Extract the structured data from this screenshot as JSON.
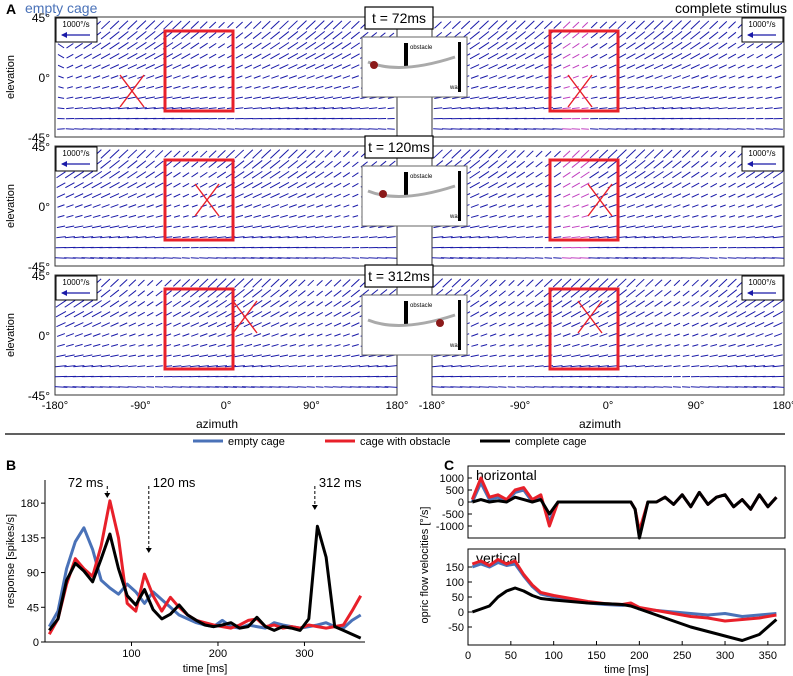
{
  "colors": {
    "empty": "#4a72b8",
    "obstacle": "#e8202a",
    "complete": "#000000",
    "flow": "#1a1aa8",
    "flow_highlight": "#c040c0",
    "box": "#e8202a"
  },
  "panelA": {
    "label": "A",
    "left_title": "empty cage",
    "right_title": "complete stimulus",
    "speed_label": "1000°/s",
    "elevation_label": "elevation",
    "azimuth_label": "azimuth",
    "elev_ticks": [
      "45°",
      "0°",
      "-45°"
    ],
    "azim_ticks": [
      "-180°",
      "-90°",
      "0°",
      "90°",
      "180°"
    ],
    "times": [
      "t = 72ms",
      "t = 120ms",
      "t = 312ms"
    ],
    "inset_obstacle": "obstacle",
    "inset_wall": "wall"
  },
  "legend": {
    "empty": "empty cage",
    "obstacle": "cage with obstacle",
    "complete": "complete cage"
  },
  "chart_data": [
    {
      "panel": "B",
      "type": "line",
      "title": "",
      "xlabel": "time [ms]",
      "ylabel": "response [spikes/s]",
      "xlim": [
        0,
        370
      ],
      "ylim": [
        0,
        210
      ],
      "xticks": [
        100,
        200,
        300
      ],
      "yticks": [
        0,
        45,
        90,
        135,
        180
      ],
      "annotations": [
        {
          "text": "72 ms",
          "x": 72
        },
        {
          "text": "120 ms",
          "x": 120
        },
        {
          "text": "312 ms",
          "x": 312
        }
      ],
      "series": [
        {
          "name": "empty cage",
          "x": [
            5,
            15,
            25,
            35,
            45,
            55,
            65,
            75,
            85,
            95,
            105,
            115,
            125,
            135,
            145,
            155,
            165,
            175,
            185,
            195,
            205,
            215,
            225,
            235,
            245,
            255,
            265,
            275,
            285,
            295,
            305,
            315,
            325,
            335,
            345,
            355,
            365
          ],
          "values": [
            20,
            40,
            95,
            130,
            148,
            120,
            80,
            70,
            62,
            75,
            65,
            50,
            65,
            55,
            45,
            35,
            30,
            25,
            22,
            20,
            28,
            20,
            18,
            22,
            20,
            18,
            25,
            22,
            20,
            18,
            20,
            22,
            25,
            20,
            18,
            28,
            35
          ]
        },
        {
          "name": "cage with obstacle",
          "x": [
            5,
            15,
            25,
            35,
            45,
            55,
            65,
            75,
            85,
            95,
            105,
            115,
            125,
            135,
            145,
            155,
            165,
            175,
            185,
            195,
            205,
            215,
            225,
            235,
            245,
            255,
            265,
            275,
            285,
            295,
            305,
            315,
            325,
            335,
            345,
            355,
            365
          ],
          "values": [
            10,
            30,
            75,
            108,
            95,
            85,
            125,
            183,
            135,
            50,
            40,
            88,
            60,
            40,
            58,
            45,
            35,
            28,
            25,
            22,
            20,
            18,
            22,
            28,
            30,
            20,
            22,
            18,
            20,
            18,
            22,
            20,
            18,
            20,
            22,
            40,
            60
          ]
        },
        {
          "name": "complete cage",
          "x": [
            5,
            15,
            25,
            35,
            45,
            55,
            65,
            75,
            85,
            95,
            105,
            115,
            125,
            135,
            145,
            155,
            165,
            175,
            185,
            195,
            205,
            215,
            225,
            235,
            245,
            255,
            265,
            275,
            285,
            295,
            305,
            315,
            325,
            335,
            345,
            355,
            365
          ],
          "values": [
            15,
            30,
            80,
            102,
            92,
            78,
            108,
            140,
            95,
            60,
            48,
            68,
            42,
            30,
            36,
            48,
            35,
            28,
            22,
            20,
            22,
            25,
            18,
            20,
            32,
            20,
            15,
            20,
            18,
            15,
            30,
            150,
            110,
            20,
            15,
            10,
            5
          ]
        }
      ]
    },
    {
      "panel": "C",
      "type": "line",
      "title": "horizontal",
      "xlabel": "",
      "ylabel": "opric flow velocities [°/s]",
      "xlim": [
        0,
        370
      ],
      "ylim": [
        -1500,
        1500
      ],
      "yticks": [
        1000,
        500,
        0,
        -500,
        -1000
      ],
      "series": [
        {
          "name": "empty cage",
          "x": [
            5,
            15,
            25,
            35,
            45,
            55,
            65,
            75,
            85,
            95,
            105,
            120,
            150,
            180,
            190,
            195,
            200,
            210,
            220,
            230,
            240,
            250,
            260,
            270,
            280,
            290,
            300,
            310,
            320,
            330,
            340,
            350,
            360
          ],
          "values": [
            0,
            800,
            100,
            200,
            0,
            400,
            500,
            0,
            200,
            -800,
            0,
            0,
            0,
            0,
            0,
            -300,
            -1400,
            0,
            0,
            200,
            -100,
            300,
            -200,
            400,
            -100,
            200,
            300,
            -200,
            100,
            -300,
            300,
            -200,
            200
          ]
        },
        {
          "name": "cage with obstacle",
          "x": [
            5,
            15,
            25,
            35,
            45,
            55,
            65,
            75,
            85,
            95,
            105,
            120,
            150,
            180,
            190,
            195,
            200,
            210,
            220,
            230,
            240,
            250,
            260,
            270,
            280,
            290,
            300,
            310,
            320,
            330,
            340,
            350,
            360
          ],
          "values": [
            100,
            1000,
            200,
            300,
            100,
            500,
            600,
            100,
            300,
            -1000,
            0,
            0,
            0,
            0,
            0,
            -300,
            -1200,
            0,
            0,
            200,
            -100,
            300,
            -200,
            400,
            -100,
            200,
            300,
            -200,
            100,
            -300,
            300,
            -200,
            200
          ]
        },
        {
          "name": "complete cage",
          "x": [
            5,
            15,
            25,
            35,
            45,
            55,
            65,
            75,
            85,
            95,
            105,
            120,
            150,
            180,
            190,
            195,
            200,
            210,
            220,
            230,
            240,
            250,
            260,
            270,
            280,
            290,
            300,
            310,
            320,
            330,
            340,
            350,
            360
          ],
          "values": [
            0,
            100,
            0,
            50,
            0,
            200,
            100,
            0,
            100,
            -500,
            0,
            0,
            0,
            0,
            0,
            -300,
            -1500,
            0,
            0,
            200,
            -100,
            300,
            -200,
            400,
            -100,
            200,
            300,
            -200,
            100,
            -300,
            300,
            -200,
            200
          ]
        }
      ]
    },
    {
      "panel": "C",
      "type": "line",
      "title": "vertical",
      "xlabel": "time [ms]",
      "ylabel": "opric flow velocities [°/s]",
      "xlim": [
        0,
        370
      ],
      "ylim": [
        -110,
        210
      ],
      "xticks": [
        0,
        50,
        100,
        150,
        200,
        250,
        300,
        350
      ],
      "yticks": [
        150,
        100,
        50,
        0,
        -50
      ],
      "series": [
        {
          "name": "empty cage",
          "x": [
            5,
            15,
            25,
            35,
            45,
            55,
            65,
            75,
            85,
            100,
            120,
            140,
            160,
            180,
            190,
            200,
            220,
            240,
            260,
            280,
            300,
            320,
            340,
            360
          ],
          "values": [
            150,
            160,
            150,
            165,
            155,
            160,
            120,
            85,
            60,
            50,
            40,
            30,
            25,
            22,
            25,
            10,
            5,
            0,
            -5,
            -10,
            -5,
            -15,
            -10,
            -5
          ]
        },
        {
          "name": "cage with obstacle",
          "x": [
            5,
            15,
            25,
            35,
            45,
            55,
            65,
            75,
            85,
            100,
            120,
            140,
            160,
            180,
            190,
            200,
            220,
            240,
            260,
            280,
            300,
            320,
            340,
            360
          ],
          "values": [
            160,
            170,
            155,
            175,
            160,
            170,
            125,
            90,
            65,
            55,
            45,
            35,
            28,
            25,
            30,
            15,
            5,
            -5,
            -15,
            -20,
            -30,
            -25,
            -20,
            -10
          ]
        },
        {
          "name": "complete cage",
          "x": [
            5,
            15,
            25,
            35,
            45,
            55,
            65,
            75,
            85,
            100,
            120,
            140,
            160,
            180,
            190,
            200,
            220,
            240,
            260,
            280,
            300,
            320,
            340,
            360
          ],
          "values": [
            0,
            10,
            20,
            50,
            70,
            80,
            70,
            55,
            45,
            40,
            35,
            30,
            28,
            25,
            20,
            10,
            -10,
            -30,
            -50,
            -65,
            -80,
            -95,
            -75,
            -25
          ]
        }
      ]
    }
  ]
}
